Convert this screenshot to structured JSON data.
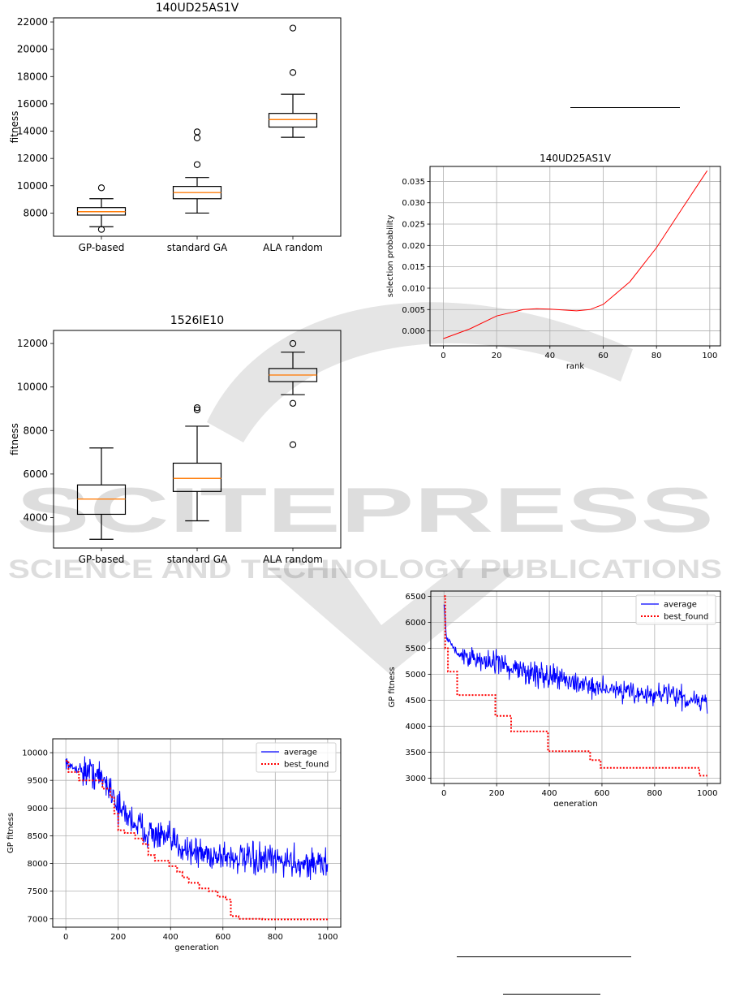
{
  "chart_data": [
    {
      "id": "box1",
      "type": "box",
      "title": "140UD25AS1V",
      "xlabel": "",
      "ylabel": "fitness",
      "ylim": [
        6300,
        22300
      ],
      "yticks": [
        8000,
        10000,
        12000,
        14000,
        16000,
        18000,
        20000,
        22000
      ],
      "categories": [
        "GP-based",
        "standard GA",
        "ALA random"
      ],
      "boxes": [
        {
          "whislo": 7000,
          "q1": 7850,
          "med": 8100,
          "q3": 8400,
          "whishi": 9050,
          "fliers": [
            6800,
            9850
          ]
        },
        {
          "whislo": 8000,
          "q1": 9050,
          "med": 9500,
          "q3": 9950,
          "whishi": 10600,
          "fliers": [
            11550,
            13500,
            13950
          ]
        },
        {
          "whislo": 13550,
          "q1": 14300,
          "med": 14850,
          "q3": 15300,
          "whishi": 16700,
          "fliers": [
            18300,
            21550
          ]
        }
      ]
    },
    {
      "id": "box2",
      "type": "box",
      "title": "1526IE10",
      "xlabel": "",
      "ylabel": "fitness",
      "ylim": [
        2600,
        12600
      ],
      "yticks": [
        4000,
        6000,
        8000,
        10000,
        12000
      ],
      "categories": [
        "GP-based",
        "standard GA",
        "ALA random"
      ],
      "boxes": [
        {
          "whislo": 3000,
          "q1": 4150,
          "med": 4850,
          "q3": 5500,
          "whishi": 7200,
          "fliers": []
        },
        {
          "whislo": 3850,
          "q1": 5200,
          "med": 5800,
          "q3": 6500,
          "whishi": 8200,
          "fliers": [
            8950,
            9050
          ]
        },
        {
          "whislo": 9650,
          "q1": 10250,
          "med": 10550,
          "q3": 10850,
          "whishi": 11600,
          "fliers": [
            7350,
            9250,
            12000
          ]
        }
      ]
    },
    {
      "id": "prob",
      "type": "line",
      "title": "140UD25AS1V",
      "xlabel": "rank",
      "ylabel": "selection probability",
      "xlim": [
        -5,
        104
      ],
      "ylim": [
        -0.0035,
        0.0385
      ],
      "xticks": [
        0,
        20,
        40,
        60,
        80,
        100
      ],
      "yticks": [
        0.0,
        0.005,
        0.01,
        0.015,
        0.02,
        0.025,
        0.03,
        0.035
      ],
      "ytick_labels": [
        "0.000",
        "0.005",
        "0.010",
        "0.015",
        "0.020",
        "0.025",
        "0.030",
        "0.035"
      ],
      "grid": true,
      "series": [
        {
          "color": "#ff0000",
          "x": [
            0,
            10,
            20,
            30,
            35,
            40,
            50,
            55,
            60,
            70,
            80,
            90,
            99
          ],
          "y": [
            -0.0018,
            0.0005,
            0.0035,
            0.005,
            0.0052,
            0.0051,
            0.0047,
            0.005,
            0.0062,
            0.0115,
            0.0195,
            0.029,
            0.0375
          ]
        }
      ]
    },
    {
      "id": "gp1",
      "type": "line",
      "title": "",
      "xlabel": "generation",
      "ylabel": "GP fitness",
      "xlim": [
        -50,
        1050
      ],
      "ylim": [
        6850,
        10250
      ],
      "xticks": [
        0,
        200,
        400,
        600,
        800,
        1000
      ],
      "yticks": [
        7000,
        7500,
        8000,
        8500,
        9000,
        9500,
        10000
      ],
      "grid": true,
      "legend": "top-right",
      "series": [
        {
          "name": "average",
          "style": "solid",
          "color": "#0000ff",
          "x": [
            0,
            20,
            50,
            80,
            100,
            150,
            180,
            200,
            250,
            300,
            350,
            400,
            450,
            500,
            550,
            600,
            650,
            700,
            750,
            800,
            850,
            900,
            950,
            1000
          ],
          "y": [
            9850,
            9720,
            9720,
            9650,
            9650,
            9480,
            9300,
            9000,
            8800,
            8600,
            8500,
            8400,
            8300,
            8200,
            8150,
            8150,
            8100,
            8050,
            8050,
            8050,
            8050,
            8000,
            8000,
            8000
          ]
        },
        {
          "name": "best_found",
          "style": "dotted",
          "color": "#ff0000",
          "x": [
            0,
            10,
            10,
            50,
            50,
            140,
            140,
            170,
            170,
            185,
            185,
            200,
            200,
            225,
            225,
            265,
            265,
            295,
            295,
            315,
            315,
            340,
            340,
            395,
            395,
            425,
            425,
            445,
            445,
            470,
            470,
            510,
            510,
            545,
            545,
            580,
            580,
            610,
            610,
            630,
            630,
            660,
            660,
            750,
            750,
            1000
          ],
          "y": [
            9850,
            9850,
            9650,
            9650,
            9500,
            9500,
            9350,
            9350,
            9200,
            9200,
            8900,
            8900,
            8600,
            8600,
            8550,
            8550,
            8450,
            8450,
            8350,
            8350,
            8150,
            8150,
            8050,
            8050,
            7950,
            7950,
            7850,
            7850,
            7750,
            7750,
            7650,
            7650,
            7550,
            7550,
            7500,
            7500,
            7400,
            7400,
            7350,
            7350,
            7050,
            7050,
            7000,
            7000,
            6990,
            6990
          ]
        }
      ]
    },
    {
      "id": "gp2",
      "type": "line",
      "title": "",
      "xlabel": "generation",
      "ylabel": "GP fitness",
      "xlim": [
        -50,
        1050
      ],
      "ylim": [
        2900,
        6600
      ],
      "xticks": [
        0,
        200,
        400,
        600,
        800,
        1000
      ],
      "yticks": [
        3000,
        3500,
        4000,
        4500,
        5000,
        5500,
        6000,
        6500
      ],
      "grid": true,
      "legend": "top-right",
      "series": [
        {
          "name": "average",
          "style": "solid",
          "color": "#0000ff",
          "x": [
            0,
            10,
            30,
            60,
            100,
            150,
            200,
            250,
            300,
            400,
            500,
            600,
            700,
            800,
            900,
            1000
          ],
          "y": [
            6400,
            5700,
            5550,
            5400,
            5300,
            5250,
            5200,
            5100,
            5050,
            4950,
            4850,
            4750,
            4650,
            4600,
            4550,
            4500
          ]
        },
        {
          "name": "best_found",
          "style": "dotted",
          "color": "#ff0000",
          "x": [
            0,
            5,
            5,
            15,
            15,
            50,
            50,
            195,
            195,
            255,
            255,
            395,
            395,
            555,
            555,
            595,
            595,
            970,
            970,
            1000
          ],
          "y": [
            6500,
            6500,
            5500,
            5500,
            5050,
            5050,
            4600,
            4600,
            4200,
            4200,
            3900,
            3900,
            3520,
            3520,
            3350,
            3350,
            3200,
            3200,
            3050,
            3050
          ]
        }
      ]
    }
  ],
  "watermark": {
    "line1": "SCITEPRESS",
    "line2": "SCIENCE AND TECHNOLOGY PUBLICATIONS"
  }
}
